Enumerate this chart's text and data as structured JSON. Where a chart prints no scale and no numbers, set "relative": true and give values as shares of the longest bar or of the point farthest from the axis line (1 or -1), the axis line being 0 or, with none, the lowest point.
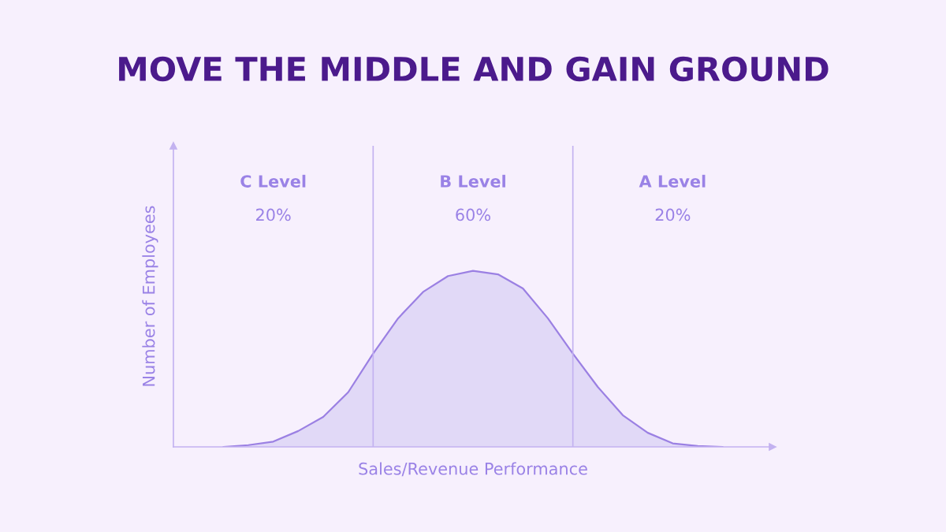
{
  "chart_data": {
    "type": "area",
    "title": "MOVE THE MIDDLE AND GAIN GROUND",
    "xlabel": "Sales/Revenue Performance",
    "ylabel": "Number of Employees",
    "relative": true,
    "categories": [
      null,
      null,
      null,
      null,
      null,
      null,
      null,
      null,
      null,
      null,
      null,
      null,
      null,
      null,
      null,
      null,
      null,
      null,
      null,
      null,
      null
    ],
    "series": [
      {
        "color": "#9b80e3",
        "values": [
          0,
          0.01,
          0.03,
          0.09,
          0.17,
          0.31,
          0.53,
          0.73,
          0.88,
          0.97,
          1.0,
          0.98,
          0.9,
          0.73,
          0.53,
          0.34,
          0.18,
          0.08,
          0.02,
          0.005,
          0
        ]
      }
    ],
    "annotations": [
      "C Level",
      "20%",
      "B Level",
      "60%",
      "A Level",
      "20%"
    ],
    "grid": false,
    "legend": false,
    "tick_labels": false
  }
}
